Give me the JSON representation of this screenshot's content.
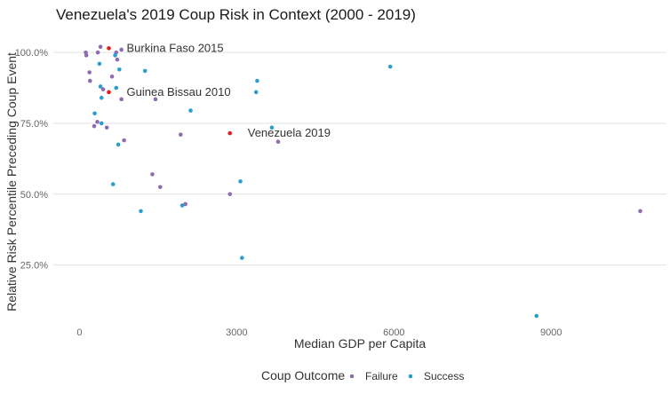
{
  "chart_data": {
    "type": "scatter",
    "title": "Venezuela's 2019 Coup Risk in Context (2000 - 2019)",
    "xlabel": "Median GDP per Capita",
    "ylabel": "Relative Risk Percentile Preceding Coup Event",
    "xlim": [
      -500,
      11200
    ],
    "ylim": [
      0.02,
      1.06
    ],
    "x_ticks": [
      0,
      3000,
      6000,
      9000
    ],
    "x_tick_labels": [
      "0",
      "3000",
      "6000",
      "9000"
    ],
    "y_ticks": [
      0.25,
      0.5,
      0.75,
      1.0
    ],
    "y_tick_labels": [
      "25.0%",
      "50.0%",
      "75.0%",
      "100.0%"
    ],
    "grid": "horizontal major",
    "legend": {
      "title": "Coup Outcome",
      "position": "bottom",
      "entries": [
        {
          "label": "Failure",
          "color": "#8e6bb3"
        },
        {
          "label": "Success",
          "color": "#2b9ecf"
        }
      ]
    },
    "colors": {
      "Failure": "#8e6bb3",
      "Success": "#2b9ecf",
      "Highlight": "#e31a1c"
    },
    "series": [
      {
        "name": "Failure",
        "points": [
          {
            "x": 120,
            "y": 1.0
          },
          {
            "x": 130,
            "y": 0.99
          },
          {
            "x": 350,
            "y": 1.0
          },
          {
            "x": 400,
            "y": 1.02
          },
          {
            "x": 700,
            "y": 1.0
          },
          {
            "x": 800,
            "y": 1.01
          },
          {
            "x": 720,
            "y": 0.975
          },
          {
            "x": 190,
            "y": 0.93
          },
          {
            "x": 200,
            "y": 0.9
          },
          {
            "x": 620,
            "y": 0.915
          },
          {
            "x": 450,
            "y": 0.87
          },
          {
            "x": 800,
            "y": 0.835
          },
          {
            "x": 1450,
            "y": 0.835
          },
          {
            "x": 280,
            "y": 0.74
          },
          {
            "x": 340,
            "y": 0.755
          },
          {
            "x": 520,
            "y": 0.735
          },
          {
            "x": 850,
            "y": 0.69
          },
          {
            "x": 1930,
            "y": 0.71
          },
          {
            "x": 3790,
            "y": 0.685
          },
          {
            "x": 1390,
            "y": 0.57
          },
          {
            "x": 1540,
            "y": 0.525
          },
          {
            "x": 2870,
            "y": 0.5
          },
          {
            "x": 2020,
            "y": 0.465
          },
          {
            "x": 10700,
            "y": 0.44
          }
        ]
      },
      {
        "name": "Success",
        "points": [
          {
            "x": 680,
            "y": 0.99
          },
          {
            "x": 1250,
            "y": 0.935
          },
          {
            "x": 760,
            "y": 0.94
          },
          {
            "x": 380,
            "y": 0.96
          },
          {
            "x": 3390,
            "y": 0.9
          },
          {
            "x": 3370,
            "y": 0.86
          },
          {
            "x": 5930,
            "y": 0.95
          },
          {
            "x": 400,
            "y": 0.88
          },
          {
            "x": 700,
            "y": 0.875
          },
          {
            "x": 420,
            "y": 0.84
          },
          {
            "x": 2120,
            "y": 0.795
          },
          {
            "x": 290,
            "y": 0.785
          },
          {
            "x": 420,
            "y": 0.75
          },
          {
            "x": 3670,
            "y": 0.735
          },
          {
            "x": 740,
            "y": 0.675
          },
          {
            "x": 640,
            "y": 0.535
          },
          {
            "x": 3070,
            "y": 0.545
          },
          {
            "x": 1960,
            "y": 0.46
          },
          {
            "x": 1170,
            "y": 0.44
          },
          {
            "x": 3100,
            "y": 0.275
          },
          {
            "x": 8720,
            "y": 0.07
          }
        ]
      }
    ],
    "highlighted": [
      {
        "label": "Burkina Faso 2015",
        "x": 560,
        "y": 1.015,
        "color": "#e31a1c"
      },
      {
        "label": "Guinea Bissau 2010",
        "x": 560,
        "y": 0.86,
        "color": "#e31a1c"
      },
      {
        "label": "Venezuela 2019",
        "x": 2870,
        "y": 0.715,
        "color": "#e31a1c"
      }
    ]
  }
}
